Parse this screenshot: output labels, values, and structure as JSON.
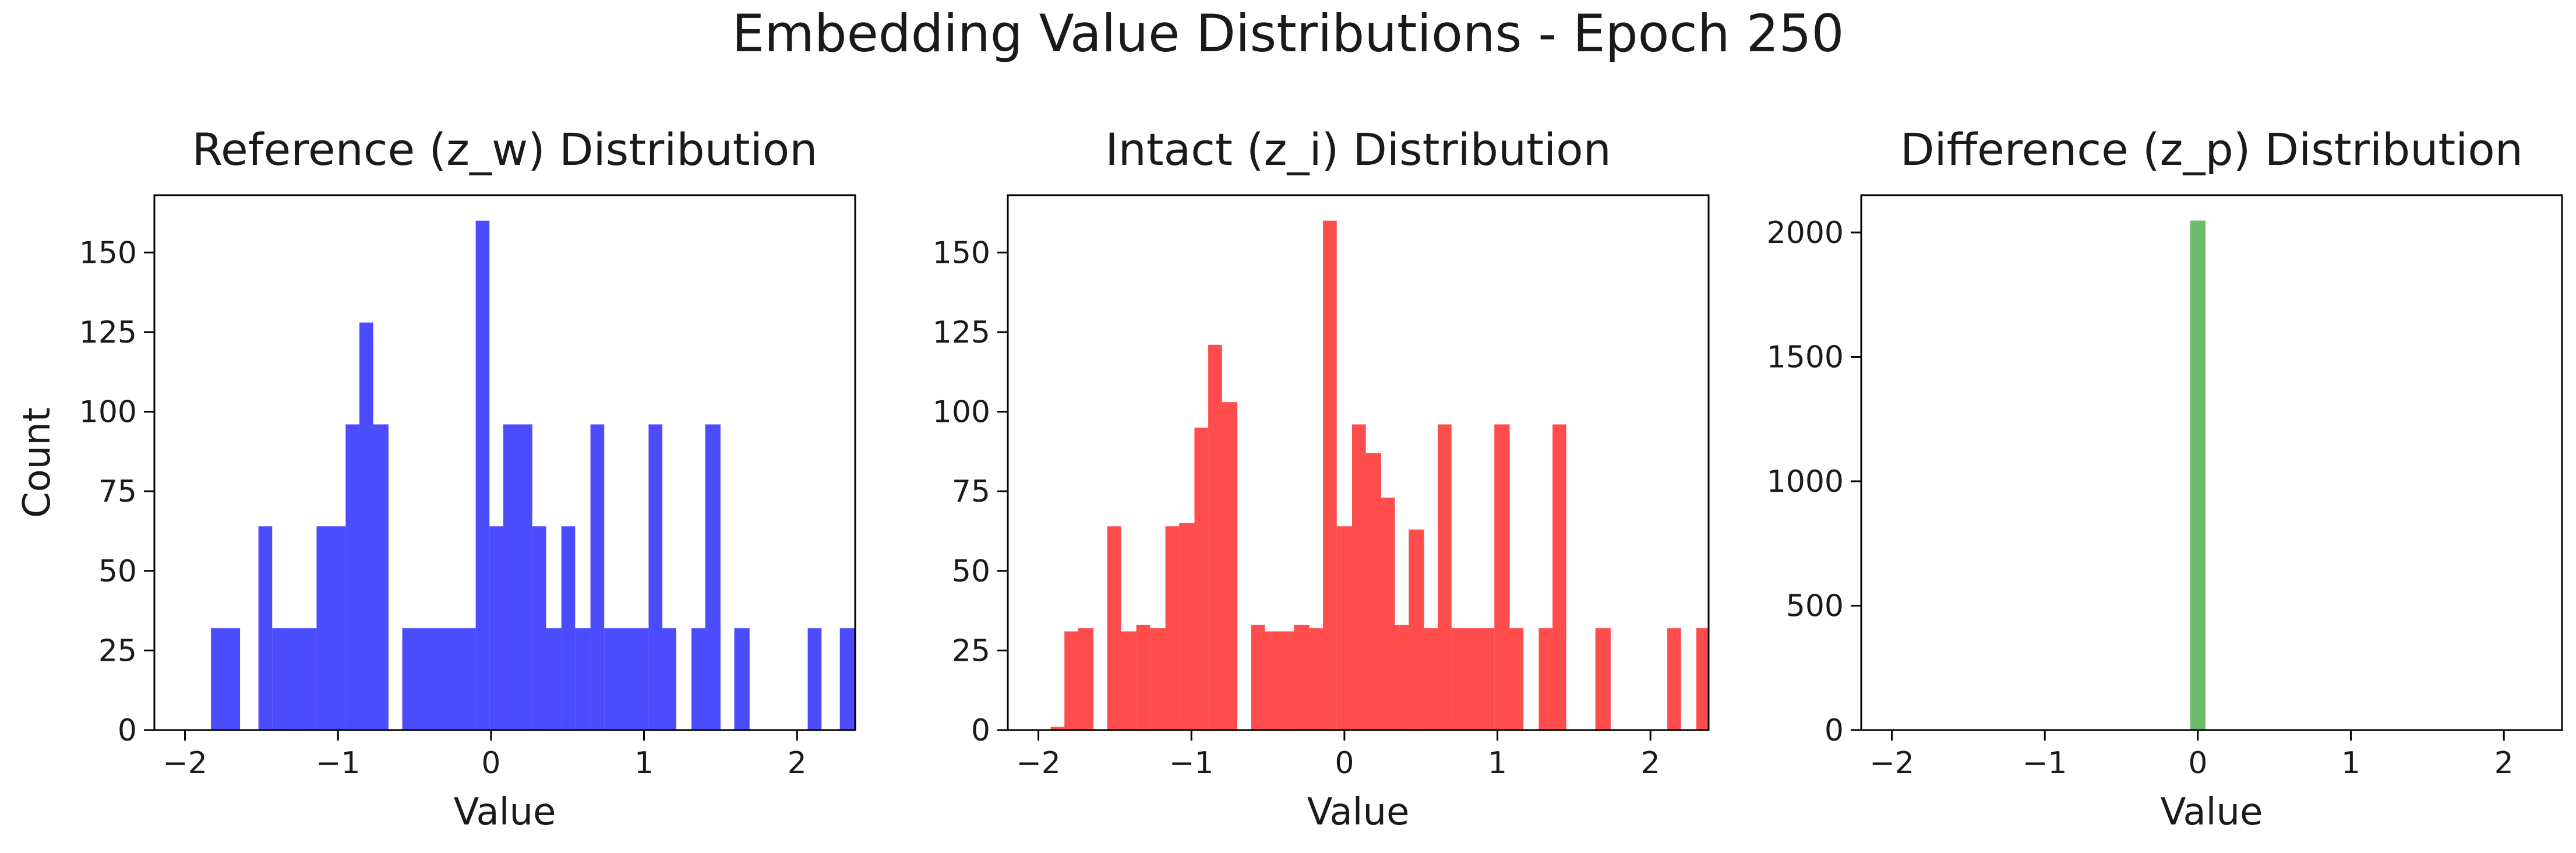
{
  "figure_title": "Embedding Value Distributions - Epoch 250",
  "chart_data": [
    {
      "type": "bar",
      "title": "Reference (z_w) Distribution",
      "xlabel": "Value",
      "ylabel": "Count",
      "color": "#0000ff",
      "xlim": [
        -2.2,
        2.38
      ],
      "ylim": [
        0,
        168
      ],
      "xticks": [
        -2,
        -1,
        0,
        1,
        2
      ],
      "xtick_labels": [
        "−2",
        "−1",
        "0",
        "1",
        "2"
      ],
      "yticks": [
        0,
        25,
        50,
        75,
        100,
        125,
        150
      ],
      "bins": [
        {
          "x0": -1.83,
          "x1": -1.64,
          "value": 32
        },
        {
          "x0": -1.52,
          "x1": -1.43,
          "value": 64
        },
        {
          "x0": -1.43,
          "x1": -1.14,
          "value": 32
        },
        {
          "x0": -1.14,
          "x1": -0.95,
          "value": 64
        },
        {
          "x0": -0.95,
          "x1": -0.86,
          "value": 96
        },
        {
          "x0": -0.86,
          "x1": -0.77,
          "value": 128
        },
        {
          "x0": -0.77,
          "x1": -0.67,
          "value": 96
        },
        {
          "x0": -0.58,
          "x1": -0.1,
          "value": 32
        },
        {
          "x0": -0.1,
          "x1": -0.01,
          "value": 160
        },
        {
          "x0": -0.01,
          "x1": 0.08,
          "value": 64
        },
        {
          "x0": 0.08,
          "x1": 0.27,
          "value": 96
        },
        {
          "x0": 0.27,
          "x1": 0.36,
          "value": 64
        },
        {
          "x0": 0.36,
          "x1": 0.46,
          "value": 32
        },
        {
          "x0": 0.46,
          "x1": 0.55,
          "value": 64
        },
        {
          "x0": 0.55,
          "x1": 0.65,
          "value": 32
        },
        {
          "x0": 0.65,
          "x1": 0.74,
          "value": 96
        },
        {
          "x0": 0.74,
          "x1": 1.03,
          "value": 32
        },
        {
          "x0": 1.03,
          "x1": 1.12,
          "value": 96
        },
        {
          "x0": 1.12,
          "x1": 1.21,
          "value": 32
        },
        {
          "x0": 1.31,
          "x1": 1.4,
          "value": 32
        },
        {
          "x0": 1.4,
          "x1": 1.5,
          "value": 96
        },
        {
          "x0": 1.59,
          "x1": 1.69,
          "value": 32
        },
        {
          "x0": 2.07,
          "x1": 2.16,
          "value": 32
        },
        {
          "x0": 2.28,
          "x1": 2.38,
          "value": 32
        }
      ]
    },
    {
      "type": "bar",
      "title": "Intact (z_i) Distribution",
      "xlabel": "Value",
      "ylabel": "",
      "color": "#ff0000",
      "xlim": [
        -2.2,
        2.38
      ],
      "ylim": [
        0,
        168
      ],
      "xticks": [
        -2,
        -1,
        0,
        1,
        2
      ],
      "xtick_labels": [
        "−2",
        "−1",
        "0",
        "1",
        "2"
      ],
      "yticks": [
        0,
        25,
        50,
        75,
        100,
        125,
        150
      ],
      "bins": [
        {
          "x0": -1.92,
          "x1": -1.83,
          "value": 1
        },
        {
          "x0": -1.83,
          "x1": -1.74,
          "value": 31
        },
        {
          "x0": -1.74,
          "x1": -1.64,
          "value": 32
        },
        {
          "x0": -1.55,
          "x1": -1.46,
          "value": 64
        },
        {
          "x0": -1.46,
          "x1": -1.36,
          "value": 31
        },
        {
          "x0": -1.36,
          "x1": -1.27,
          "value": 33
        },
        {
          "x0": -1.27,
          "x1": -1.17,
          "value": 32
        },
        {
          "x0": -1.17,
          "x1": -1.08,
          "value": 64
        },
        {
          "x0": -1.08,
          "x1": -0.98,
          "value": 65
        },
        {
          "x0": -0.98,
          "x1": -0.89,
          "value": 95
        },
        {
          "x0": -0.89,
          "x1": -0.8,
          "value": 121
        },
        {
          "x0": -0.8,
          "x1": -0.7,
          "value": 103
        },
        {
          "x0": -0.61,
          "x1": -0.52,
          "value": 33
        },
        {
          "x0": -0.52,
          "x1": -0.33,
          "value": 31
        },
        {
          "x0": -0.33,
          "x1": -0.23,
          "value": 33
        },
        {
          "x0": -0.23,
          "x1": -0.14,
          "value": 32
        },
        {
          "x0": -0.14,
          "x1": -0.05,
          "value": 160
        },
        {
          "x0": -0.05,
          "x1": 0.05,
          "value": 64
        },
        {
          "x0": 0.05,
          "x1": 0.14,
          "value": 96
        },
        {
          "x0": 0.14,
          "x1": 0.24,
          "value": 87
        },
        {
          "x0": 0.24,
          "x1": 0.33,
          "value": 73
        },
        {
          "x0": 0.33,
          "x1": 0.42,
          "value": 33
        },
        {
          "x0": 0.42,
          "x1": 0.52,
          "value": 63
        },
        {
          "x0": 0.52,
          "x1": 0.61,
          "value": 32
        },
        {
          "x0": 0.61,
          "x1": 0.7,
          "value": 96
        },
        {
          "x0": 0.7,
          "x1": 0.98,
          "value": 32
        },
        {
          "x0": 0.98,
          "x1": 1.08,
          "value": 96
        },
        {
          "x0": 1.08,
          "x1": 1.17,
          "value": 32
        },
        {
          "x0": 1.27,
          "x1": 1.36,
          "value": 32
        },
        {
          "x0": 1.36,
          "x1": 1.45,
          "value": 96
        },
        {
          "x0": 1.64,
          "x1": 1.74,
          "value": 32
        },
        {
          "x0": 2.11,
          "x1": 2.2,
          "value": 32
        },
        {
          "x0": 2.3,
          "x1": 2.38,
          "value": 32
        }
      ]
    },
    {
      "type": "bar",
      "title": "Difference (z_p) Distribution",
      "xlabel": "Value",
      "ylabel": "",
      "color": "#2ca02c",
      "xlim": [
        -2.2,
        2.38
      ],
      "ylim": [
        0,
        2150
      ],
      "xticks": [
        -2,
        -1,
        0,
        1,
        2
      ],
      "xtick_labels": [
        "−2",
        "−1",
        "0",
        "1",
        "2"
      ],
      "yticks": [
        0,
        500,
        1000,
        1500,
        2000
      ],
      "bins": [
        {
          "x0": -0.05,
          "x1": 0.05,
          "value": 2048
        }
      ]
    }
  ]
}
